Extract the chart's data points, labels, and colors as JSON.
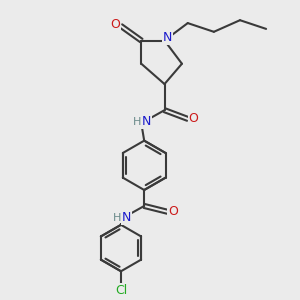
{
  "bg_color": "#ebebeb",
  "bond_color": "#3a3a3a",
  "N_color": "#1a1acc",
  "O_color": "#cc1a1a",
  "Cl_color": "#22aa22",
  "H_color": "#6a8a8a",
  "line_width": 1.5,
  "figsize": [
    3.0,
    3.0
  ],
  "dpi": 100,
  "xlim": [
    0,
    10
  ],
  "ylim": [
    0,
    10
  ]
}
